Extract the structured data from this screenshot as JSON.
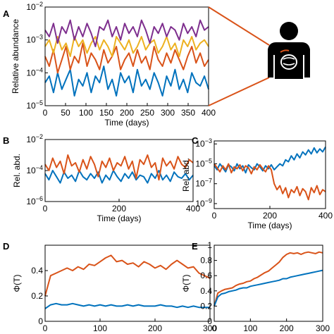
{
  "colors": {
    "purple": "#7e2f8e",
    "yellow": "#edb120",
    "orange": "#d95319",
    "blue": "#0072bd",
    "connector": "#d95319",
    "silhouette": "#000000"
  },
  "icons": {
    "body": "human-gut-silhouette-icon"
  },
  "chart_data": [
    {
      "panel": "A",
      "type": "line",
      "xlabel": "Time (days)",
      "ylabel": "Relative abundance",
      "xlim": [
        0,
        400
      ],
      "ylim_exp": [
        -5,
        -2
      ],
      "yscale": "log",
      "xticks": [
        "0",
        "50",
        "100",
        "150",
        "200",
        "250",
        "300",
        "350",
        "400"
      ],
      "yticks": [
        "10^-5",
        "10^-4",
        "10^-3",
        "10^-2"
      ],
      "series": [
        {
          "color": "#0072bd",
          "values": [
            -4.3,
            -4.1,
            -4.6,
            -4.0,
            -4.5,
            -4.2,
            -3.9,
            -4.7,
            -4.2,
            -4.4,
            -4.0,
            -4.6,
            -4.1,
            -4.3,
            -3.8,
            -4.5,
            -4.2,
            -4.7,
            -4.0,
            -4.3,
            -4.1,
            -4.6,
            -3.9,
            -4.4,
            -4.2,
            -4.5,
            -4.0,
            -4.3,
            -4.7,
            -4.1,
            -4.4,
            -3.9,
            -4.5,
            -4.2,
            -4.6,
            -4.0,
            -4.3,
            -4.4,
            -4.1,
            -4.5
          ]
        },
        {
          "color": "#d95319",
          "values": [
            -3.5,
            -3.8,
            -3.3,
            -4.0,
            -3.6,
            -3.2,
            -3.9,
            -3.5,
            -3.7,
            -3.1,
            -3.8,
            -3.4,
            -3.6,
            -3.9,
            -3.3,
            -3.7,
            -3.5,
            -3.2,
            -3.9,
            -3.6,
            -3.4,
            -3.8,
            -3.3,
            -3.7,
            -3.5,
            -3.9,
            -3.2,
            -3.6,
            -3.8,
            -3.4,
            -3.7,
            -3.3,
            -3.6,
            -3.9,
            -3.5,
            -3.2,
            -3.7,
            -3.4,
            -3.8,
            -3.6
          ]
        },
        {
          "color": "#edb120",
          "values": [
            -3.2,
            -3.0,
            -3.4,
            -2.9,
            -3.3,
            -3.1,
            -3.5,
            -2.9,
            -3.2,
            -3.0,
            -3.4,
            -3.1,
            -2.9,
            -3.3,
            -3.0,
            -3.2,
            -3.5,
            -2.9,
            -3.1,
            -3.3,
            -3.0,
            -3.4,
            -3.2,
            -2.9,
            -3.3,
            -3.1,
            -3.0,
            -3.4,
            -3.2,
            -2.9,
            -3.3,
            -3.1,
            -3.5,
            -3.0,
            -3.2,
            -2.9,
            -3.3,
            -3.1,
            -3.0,
            -3.2
          ]
        },
        {
          "color": "#7e2f8e",
          "values": [
            -2.7,
            -2.9,
            -2.5,
            -3.1,
            -2.6,
            -2.8,
            -2.4,
            -3.0,
            -2.6,
            -2.9,
            -2.5,
            -2.8,
            -3.2,
            -2.6,
            -2.7,
            -2.4,
            -2.9,
            -2.6,
            -3.0,
            -2.5,
            -2.8,
            -2.6,
            -2.9,
            -2.4,
            -2.7,
            -3.1,
            -2.6,
            -2.8,
            -2.5,
            -2.9,
            -2.6,
            -2.7,
            -3.0,
            -2.5,
            -2.8,
            -2.6,
            -2.9,
            -2.4,
            -2.7,
            -2.6
          ]
        }
      ]
    },
    {
      "panel": "B",
      "type": "line",
      "xlabel": "Time (days)",
      "ylabel": "Rel. abd.",
      "xlim": [
        0,
        400
      ],
      "ylim_exp": [
        -6,
        -2
      ],
      "yscale": "log",
      "xticks": [
        "0",
        "200",
        "400"
      ],
      "yticks": [
        "10^-6",
        "10^-4",
        "10^-2"
      ],
      "series": [
        {
          "color": "#0072bd",
          "values": [
            -4.2,
            -4.6,
            -4.0,
            -4.4,
            -4.8,
            -4.1,
            -4.5,
            -4.3,
            -4.7,
            -4.0,
            -4.4,
            -4.6,
            -4.2,
            -4.5,
            -4.1,
            -4.8,
            -4.3,
            -4.6,
            -4.0,
            -4.4,
            -4.7,
            -4.2,
            -4.5,
            -4.1,
            -4.6,
            -4.3,
            -4.4,
            -4.8,
            -4.2,
            -4.5,
            -4.0,
            -4.6,
            -4.3,
            -4.7,
            -4.1,
            -4.4,
            -4.5,
            -4.2,
            -4.6,
            -4.3
          ]
        },
        {
          "color": "#d95319",
          "values": [
            -3.6,
            -4.0,
            -3.2,
            -3.8,
            -3.4,
            -4.2,
            -3.0,
            -3.7,
            -3.5,
            -4.1,
            -3.3,
            -3.9,
            -3.1,
            -3.6,
            -4.4,
            -3.4,
            -3.8,
            -3.2,
            -4.0,
            -3.5,
            -3.7,
            -3.1,
            -3.9,
            -3.4,
            -4.5,
            -3.3,
            -3.6,
            -3.0,
            -3.8,
            -3.5,
            -4.6,
            -3.2,
            -3.7,
            -3.4,
            -3.9,
            -3.1,
            -3.6,
            -3.8,
            -3.3,
            -3.5
          ]
        }
      ]
    },
    {
      "panel": "C",
      "type": "line",
      "xlabel": "Time (days)",
      "ylabel": "Rel. abd.",
      "xlim": [
        0,
        400
      ],
      "ylim_exp": [
        -9.5,
        -2.7
      ],
      "yscale": "log",
      "xticks": [
        "0",
        "200",
        "400"
      ],
      "yticks": [
        "10^-9",
        "10^-7",
        "10^-5",
        "10^-3"
      ],
      "series": [
        {
          "color": "#0072bd",
          "values": [
            -5.2,
            -5.6,
            -5.0,
            -5.4,
            -5.8,
            -5.1,
            -5.3,
            -5.7,
            -5.0,
            -5.5,
            -5.2,
            -5.9,
            -5.1,
            -5.4,
            -5.6,
            -5.0,
            -5.3,
            -5.7,
            -5.2,
            -5.5,
            -5.1,
            -5.6,
            -5.3,
            -5.0,
            -5.2,
            -4.6,
            -4.8,
            -4.2,
            -4.6,
            -4.0,
            -4.4,
            -3.8,
            -4.1,
            -3.6,
            -4.0,
            -3.4,
            -3.9,
            -3.5,
            -3.8,
            -3.3
          ]
        },
        {
          "color": "#d95319",
          "values": [
            -5.0,
            -5.4,
            -5.8,
            -5.2,
            -5.6,
            -5.0,
            -5.9,
            -5.3,
            -5.5,
            -5.1,
            -5.7,
            -5.2,
            -5.4,
            -6.0,
            -5.3,
            -5.6,
            -5.1,
            -5.5,
            -5.8,
            -5.2,
            -5.6,
            -7.0,
            -7.6,
            -7.2,
            -8.0,
            -7.4,
            -8.4,
            -7.6,
            -7.9,
            -7.3,
            -8.2,
            -7.5,
            -7.8,
            -8.6,
            -7.4,
            -7.9,
            -7.2,
            -8.1,
            -7.6,
            -7.8
          ]
        }
      ]
    },
    {
      "panel": "D",
      "type": "line",
      "xlabel": "T (days)",
      "ylabel": "Φ(T)",
      "xlim": [
        0,
        300
      ],
      "ylim": [
        0,
        0.6
      ],
      "xticks": [
        "0",
        "100",
        "200",
        "300"
      ],
      "yticks": [
        "0",
        "0.2",
        "0.4"
      ],
      "series": [
        {
          "color": "#d95319",
          "values": [
            0.2,
            0.36,
            0.38,
            0.4,
            0.42,
            0.4,
            0.43,
            0.41,
            0.45,
            0.44,
            0.47,
            0.5,
            0.52,
            0.47,
            0.48,
            0.45,
            0.46,
            0.43,
            0.47,
            0.45,
            0.42,
            0.44,
            0.41,
            0.45,
            0.48,
            0.45,
            0.42,
            0.43,
            0.38,
            0.36,
            0.34
          ]
        },
        {
          "color": "#0072bd",
          "values": [
            0.1,
            0.13,
            0.14,
            0.13,
            0.13,
            0.14,
            0.13,
            0.12,
            0.13,
            0.12,
            0.13,
            0.12,
            0.13,
            0.12,
            0.12,
            0.13,
            0.12,
            0.13,
            0.12,
            0.12,
            0.12,
            0.13,
            0.12,
            0.12,
            0.11,
            0.12,
            0.11,
            0.12,
            0.11,
            0.11,
            0.11
          ]
        }
      ]
    },
    {
      "panel": "E",
      "type": "line",
      "xlabel": "T (days)",
      "ylabel": "Φ(T)",
      "xlim": [
        0,
        300
      ],
      "ylim": [
        0,
        1.0
      ],
      "xticks": [
        "0",
        "100",
        "200",
        "300"
      ],
      "yticks": [
        "0",
        "0.2",
        "0.4",
        "0.6",
        "0.8",
        "1"
      ],
      "series": [
        {
          "color": "#d95319",
          "values": [
            0.2,
            0.37,
            0.4,
            0.42,
            0.43,
            0.44,
            0.47,
            0.49,
            0.5,
            0.52,
            0.53,
            0.56,
            0.58,
            0.61,
            0.64,
            0.66,
            0.7,
            0.74,
            0.78,
            0.84,
            0.88,
            0.9,
            0.89,
            0.9,
            0.88,
            0.9,
            0.91,
            0.9,
            0.89,
            0.91,
            0.9
          ]
        },
        {
          "color": "#0072bd",
          "values": [
            0.2,
            0.32,
            0.36,
            0.37,
            0.39,
            0.4,
            0.41,
            0.43,
            0.44,
            0.44,
            0.46,
            0.47,
            0.48,
            0.49,
            0.5,
            0.51,
            0.52,
            0.53,
            0.54,
            0.56,
            0.56,
            0.58,
            0.59,
            0.6,
            0.61,
            0.62,
            0.63,
            0.64,
            0.65,
            0.66,
            0.67
          ]
        }
      ]
    }
  ],
  "panel_letters": [
    "A",
    "B",
    "C",
    "D",
    "E"
  ]
}
